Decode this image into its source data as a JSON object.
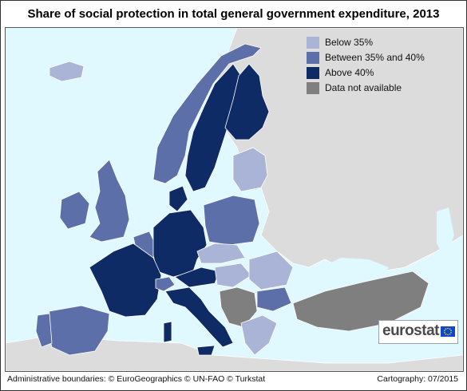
{
  "title": "Share of social protection in total general government expenditure, 2013",
  "legend": [
    {
      "label": "Below 35%",
      "color": "#a9b4d6"
    },
    {
      "label": "Between 35% and 40%",
      "color": "#5c6fa8"
    },
    {
      "label": "Above 40%",
      "color": "#0e2b66"
    },
    {
      "label": "Data not available",
      "color": "#7f7f7f"
    }
  ],
  "colors": {
    "sea": "#e0f8ff",
    "non_eu_land": "#dcdcdc",
    "border": "#ffffff"
  },
  "logo": {
    "text": "eurostat"
  },
  "footer": {
    "left": "Administrative boundaries: © EuroGeographics © UN-FAO © Turkstat",
    "right": "Cartography: 07/2015"
  }
}
